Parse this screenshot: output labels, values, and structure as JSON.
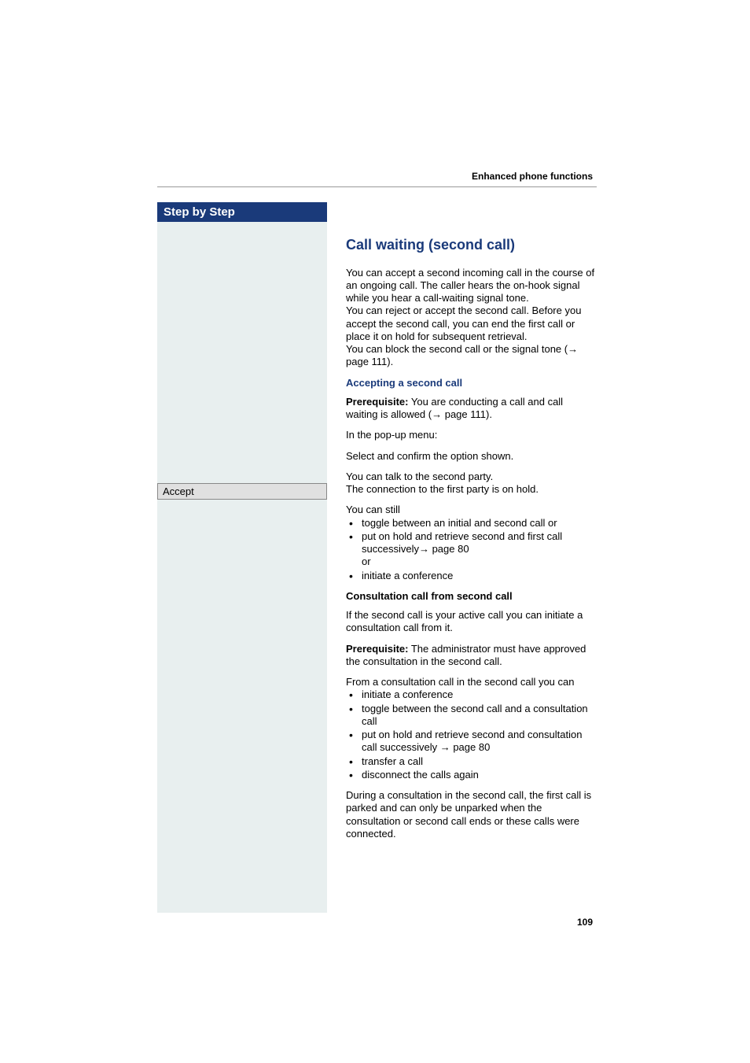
{
  "chapter_label": "Enhanced phone functions",
  "sidebar": {
    "header": "Step by Step",
    "accept_label": "Accept"
  },
  "content": {
    "title": "Call waiting (second call)",
    "intro_p1": "You can accept a second incoming call in the course of an ongoing call. The caller hears the on-hook signal while you hear a call-waiting signal tone.",
    "intro_p2": "You can reject or accept the second call. Before you accept the second call, you can end the first call or place it on hold for subsequent retrieval.",
    "intro_p3a": "You can block the second call or the signal tone (",
    "intro_p3_arrow": "→",
    "intro_p3b": " page 111).",
    "accepting_header": "Accepting a second call",
    "prereq1_label": "Prerequisite:",
    "prereq1_text_a": " You are conducting a call and call waiting is allowed (",
    "prereq1_arrow": "→",
    "prereq1_text_b": " page 111).",
    "popup_text": "In the pop-up menu:",
    "select_text": "Select and confirm the option shown.",
    "talk_p1": "You can talk to the second party.",
    "talk_p2": "The connection to the first party is on hold.",
    "youcan_still": "You can still",
    "bullets1": {
      "b1": "toggle between an initial and second call or",
      "b2a": "put on hold and retrieve second and first call successively",
      "b2_arrow": "→",
      "b2b": " page 80",
      "b2c": "or",
      "b3": "initiate a conference"
    },
    "consult_header": "Consultation call from second call",
    "consult_p1": "If the second call is your active call you can initiate a consultation call from it.",
    "prereq2_label": "Prerequisite:",
    "prereq2_text": " The administrator must have approved the consultation in the second call.",
    "from_consult": "From a consultation call in the second call you can",
    "bullets2": {
      "b1": "initiate a conference",
      "b2": "toggle between the second call and a consultation call",
      "b3a": "put on hold and retrieve second and consultation call successively ",
      "b3_arrow": "→",
      "b3b": " page 80",
      "b4": "transfer a call",
      "b5": "disconnect the calls again"
    },
    "during_p": "During a consultation in the second call, the first call is parked and can only be unparked when the consultation or second call ends or these calls were connected."
  },
  "page_number": "109"
}
